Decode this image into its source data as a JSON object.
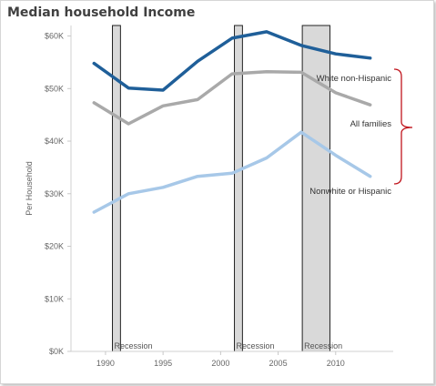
{
  "chart_data": {
    "type": "line",
    "title": "Median household Income",
    "xlabel": "",
    "ylabel": "Per Household",
    "xlim": [
      1987,
      2015
    ],
    "ylim": [
      0,
      62000
    ],
    "x_ticks": [
      1990,
      1995,
      2000,
      2005,
      2010
    ],
    "y_ticks": [
      {
        "value": 0,
        "label": "$0K"
      },
      {
        "value": 10000,
        "label": "$10K"
      },
      {
        "value": 20000,
        "label": "$20K"
      },
      {
        "value": 30000,
        "label": "$30K"
      },
      {
        "value": 40000,
        "label": "$40K"
      },
      {
        "value": 50000,
        "label": "$50K"
      },
      {
        "value": 60000,
        "label": "$60K"
      }
    ],
    "grid": false,
    "legend": "none",
    "recessions": [
      {
        "start": 1990.6,
        "end": 1991.3,
        "label": "Recession"
      },
      {
        "start": 2001.2,
        "end": 2001.9,
        "label": "Recession"
      },
      {
        "start": 2007.1,
        "end": 2009.5,
        "label": "Recession"
      }
    ],
    "series": [
      {
        "name": "White non-Hispanic",
        "color": "#1f5f99",
        "x": [
          1989,
          1992,
          1995,
          1998,
          2001,
          2004,
          2007,
          2010,
          2013
        ],
        "values": [
          54800,
          50100,
          49700,
          55200,
          59600,
          60800,
          58200,
          56600,
          55800
        ]
      },
      {
        "name": "All families",
        "color": "#a9a9a9",
        "x": [
          1989,
          1992,
          1995,
          1998,
          2001,
          2004,
          2007,
          2010,
          2013
        ],
        "values": [
          47300,
          43300,
          46700,
          47900,
          52800,
          53200,
          53100,
          49200,
          46900
        ]
      },
      {
        "name": "Nonwhite or Hispanic",
        "color": "#a7c8e8",
        "x": [
          1989,
          1992,
          1995,
          1998,
          2001,
          2004,
          2007,
          2010,
          2013
        ],
        "values": [
          26500,
          30000,
          31200,
          33300,
          33900,
          36800,
          41700,
          37300,
          33300
        ]
      }
    ],
    "annotations": {
      "bracket_color": "#c0141c"
    }
  }
}
